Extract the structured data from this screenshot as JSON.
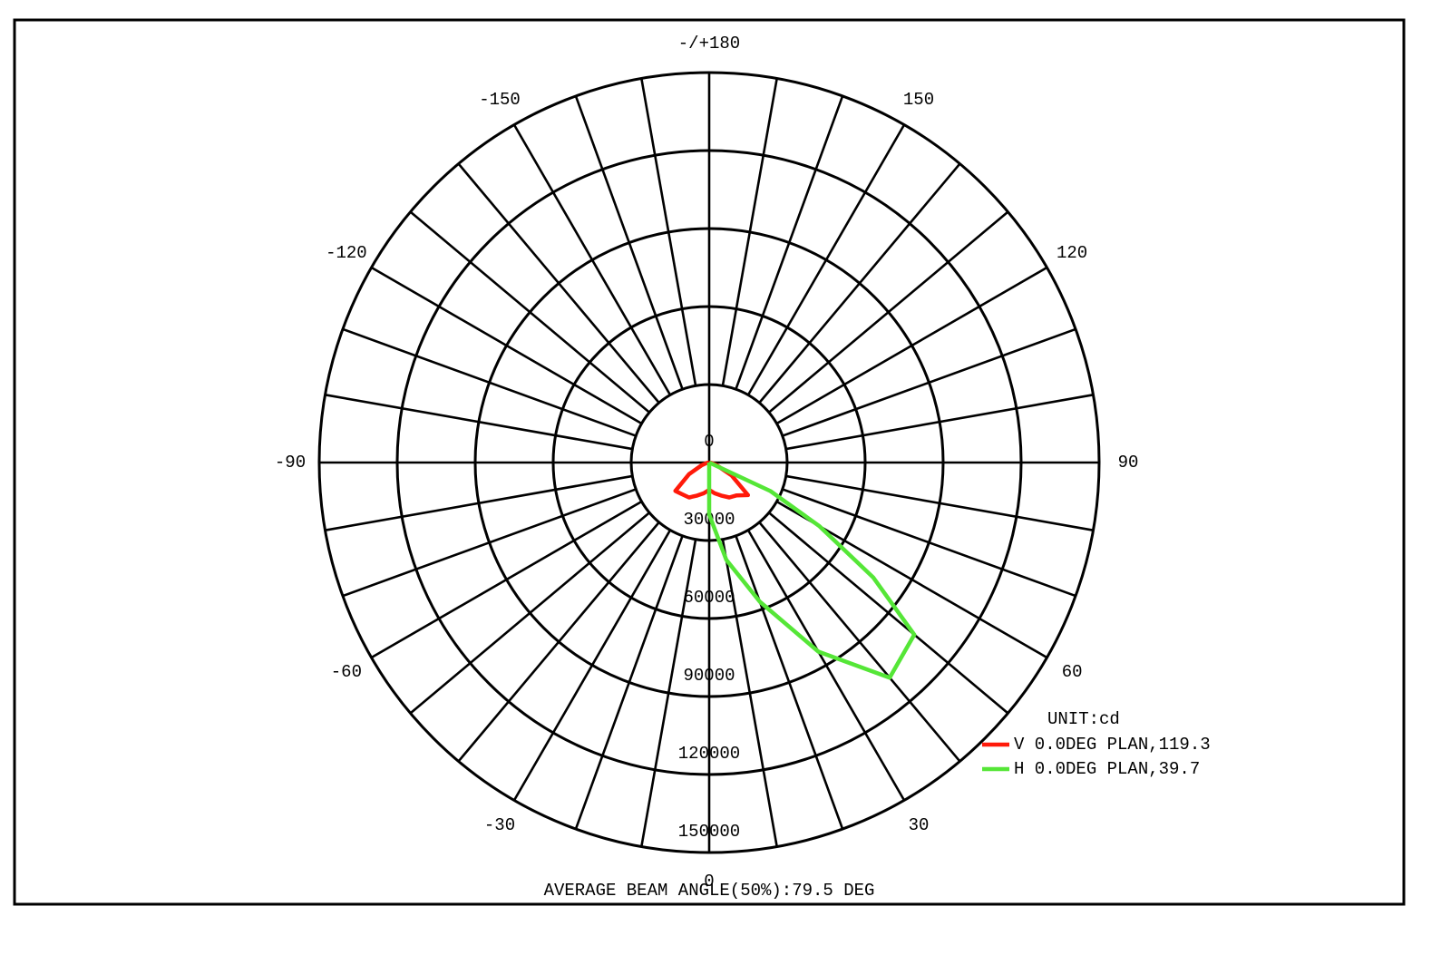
{
  "chart_data": {
    "type": "polar",
    "footer": "AVERAGE BEAM ANGLE(50%):79.5 DEG",
    "unit_label": "UNIT:cd",
    "rlim": [
      0,
      150000
    ],
    "rticks": [
      0,
      30000,
      60000,
      90000,
      120000,
      150000
    ],
    "thetaticks": [
      {
        "value": 180,
        "label": "-/+180"
      },
      -150,
      -120,
      -90,
      -60,
      -30,
      0,
      30,
      60,
      90,
      120,
      150
    ],
    "series": [
      {
        "name": "V 0.0DEG PLAN,119.3",
        "color": "#ff1a0a",
        "x": [
          -90,
          -80,
          -70,
          -60,
          -50,
          -40,
          -30,
          -20,
          -10,
          0,
          10,
          20,
          30,
          40,
          50,
          60,
          70,
          80,
          90
        ],
        "values": [
          0,
          1000,
          3000,
          9000,
          17000,
          16000,
          15500,
          13500,
          12000,
          10500,
          12000,
          13500,
          15500,
          16500,
          19500,
          10000,
          3000,
          1000,
          0
        ]
      },
      {
        "name": "H 0.0DEG PLAN,39.7",
        "color": "#55e637",
        "x": [
          -90,
          0,
          10,
          20,
          30,
          40,
          50,
          55,
          60,
          65,
          90
        ],
        "values": [
          0,
          20000,
          38000,
          57000,
          84000,
          108000,
          103000,
          77000,
          49000,
          26000,
          0
        ]
      }
    ]
  }
}
